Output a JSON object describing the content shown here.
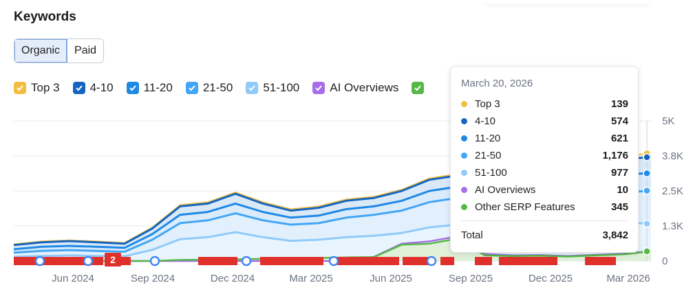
{
  "header": {
    "title": "Keywords"
  },
  "tabs": [
    {
      "label": "Organic",
      "active": true
    },
    {
      "label": "Paid",
      "active": false
    }
  ],
  "legend": [
    {
      "label": "Top 3",
      "color": "#f2be42",
      "checked": true
    },
    {
      "label": "4-10",
      "color": "#1565c0",
      "checked": true
    },
    {
      "label": "11-20",
      "color": "#1e88e5",
      "checked": true
    },
    {
      "label": "21-50",
      "color": "#42a5f5",
      "checked": true
    },
    {
      "label": "51-100",
      "color": "#90caf9",
      "checked": true
    },
    {
      "label": "AI Overviews",
      "color": "#a66ee8",
      "checked": true
    },
    {
      "label": "",
      "color": "#56b847",
      "checked": true
    }
  ],
  "tooltip": {
    "date": "March 20, 2026",
    "rows": [
      {
        "label": "Top 3",
        "value": "139",
        "color": "#f2be42"
      },
      {
        "label": "4-10",
        "value": "574",
        "color": "#1565c0"
      },
      {
        "label": "11-20",
        "value": "621",
        "color": "#1e88e5"
      },
      {
        "label": "21-50",
        "value": "1,176",
        "color": "#42a5f5"
      },
      {
        "label": "51-100",
        "value": "977",
        "color": "#90caf9"
      },
      {
        "label": "AI Overviews",
        "value": "10",
        "color": "#a66ee8"
      },
      {
        "label": "Other SERP Features",
        "value": "345",
        "color": "#56b847"
      }
    ],
    "total_label": "Total",
    "total_value": "3,842"
  },
  "chart_data": {
    "type": "area",
    "x": [
      "2024-04",
      "2024-05",
      "2024-06",
      "2024-07",
      "2024-08",
      "2024-09",
      "2024-10",
      "2024-11",
      "2024-12",
      "2025-01",
      "2025-02",
      "2025-03",
      "2025-04",
      "2025-05",
      "2025-06",
      "2025-07",
      "2025-08",
      "2025-09",
      "2025-10",
      "2025-11",
      "2025-12",
      "2026-01",
      "2026-02",
      "2026-03"
    ],
    "x_tick_labels": [
      "Jun 2024",
      "Sep 2024",
      "Dec 2024",
      "Mar 2025",
      "Jun 2025",
      "Sep 2025",
      "Dec 2025",
      "Mar 2026"
    ],
    "y_tick_labels": [
      "0",
      "1.3K",
      "2.5K",
      "3.8K",
      "5K"
    ],
    "ylim": [
      0,
      5000
    ],
    "stacked_totals": [
      {
        "name": "Top 3",
        "values": [
          600,
          700,
          740,
          700,
          650,
          1200,
          2000,
          2100,
          2450,
          2100,
          1850,
          1950,
          2200,
          2300,
          2550,
          2950,
          3100,
          3300,
          3400,
          3500,
          3600,
          3700,
          3750,
          3842
        ]
      },
      {
        "name": "4-10",
        "values": [
          570,
          670,
          710,
          670,
          620,
          1160,
          1950,
          2050,
          2400,
          2050,
          1800,
          1900,
          2150,
          2250,
          2500,
          2900,
          3050,
          3200,
          3300,
          3400,
          3500,
          3600,
          3650,
          3703
        ]
      },
      {
        "name": "11-20",
        "values": [
          420,
          510,
          540,
          510,
          470,
          960,
          1650,
          1750,
          2050,
          1750,
          1550,
          1620,
          1850,
          1950,
          2150,
          2500,
          2650,
          2700,
          2800,
          2850,
          2950,
          3050,
          3100,
          3129
        ]
      },
      {
        "name": "21-50",
        "values": [
          300,
          360,
          390,
          360,
          330,
          760,
          1350,
          1450,
          1700,
          1450,
          1300,
          1350,
          1550,
          1650,
          1800,
          2100,
          2250,
          2100,
          2150,
          2200,
          2300,
          2400,
          2450,
          2508
        ]
      },
      {
        "name": "51-100",
        "values": [
          150,
          180,
          200,
          180,
          170,
          400,
          780,
          850,
          1030,
          850,
          720,
          760,
          850,
          900,
          1000,
          1200,
          1300,
          1150,
          1200,
          1250,
          1300,
          1350,
          1380,
          1332
        ]
      }
    ],
    "series": [
      {
        "name": "AI Overviews",
        "values": [
          0,
          0,
          0,
          0,
          0,
          0,
          0,
          0,
          0,
          0,
          0,
          0,
          0,
          150,
          620,
          700,
          880,
          250,
          200,
          210,
          180,
          220,
          260,
          355
        ]
      },
      {
        "name": "Other SERP Features",
        "values": [
          0,
          0,
          0,
          0,
          0,
          0,
          40,
          50,
          60,
          80,
          90,
          110,
          130,
          140,
          580,
          620,
          800,
          200,
          180,
          190,
          160,
          200,
          240,
          345
        ]
      }
    ],
    "annotation_flag": "2"
  }
}
